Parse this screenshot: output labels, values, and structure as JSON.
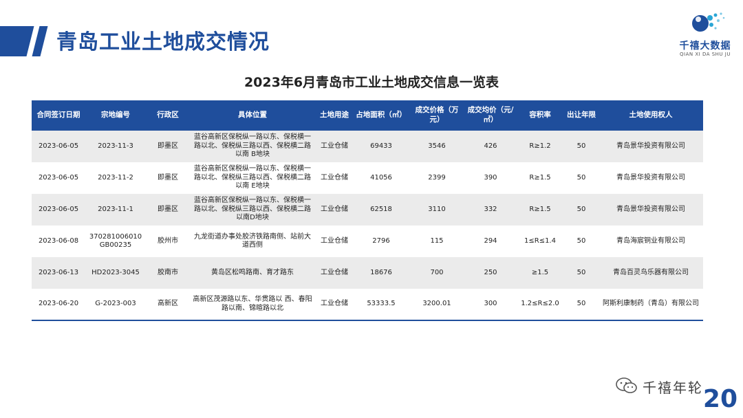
{
  "header": {
    "title": "青岛工业土地成交情况"
  },
  "logo": {
    "name": "千禧大数据",
    "pinyin": "QIAN XI DA SHU JU"
  },
  "table": {
    "title": "2023年6月青岛市工业土地成交信息一览表",
    "columns": [
      "合同签订日期",
      "宗地编号",
      "行政区",
      "具体位置",
      "土地用途",
      "占地面积（㎡）",
      "成交价格（万元）",
      "成交均价（元/㎡）",
      "容积率",
      "出让年限",
      "土地使用权人"
    ],
    "rows": [
      [
        "2023-06-05",
        "2023-11-3",
        "即墨区",
        "蓝谷高新区保税纵一路以东、保税横一路以北、保税纵三路以西、保税横二路以南 B地块",
        "工业仓储",
        "69433",
        "3546",
        "426",
        "R≥1.2",
        "50",
        "青岛景华投资有限公司"
      ],
      [
        "2023-06-05",
        "2023-11-2",
        "即墨区",
        "蓝谷高新区保税纵一路以东、保税横一路以北、保税纵三路以西、保税横二路以南 E地块",
        "工业仓储",
        "41056",
        "2399",
        "390",
        "R≥1.5",
        "50",
        "青岛景华投资有限公司"
      ],
      [
        "2023-06-05",
        "2023-11-1",
        "即墨区",
        "蓝谷高新区保税纵一路以东、保税横一路以北、保税纵三路以西、保税横二路以南D地块",
        "工业仓储",
        "62518",
        "3110",
        "332",
        "R≥1.5",
        "50",
        "青岛景华投资有限公司"
      ],
      [
        "2023-06-08",
        "370281006010GB00235",
        "胶州市",
        "九龙街道办事处胶济铁路南侧、站前大道西侧",
        "工业仓储",
        "2796",
        "115",
        "294",
        "1≤R≤1.4",
        "50",
        "青岛海宸铜业有限公司"
      ],
      [
        "2023-06-13",
        "HD2023-3045",
        "胶南市",
        "黄岛区松鸣路南、育才路东",
        "工业仓储",
        "18676",
        "700",
        "250",
        "≥1.5",
        "50",
        "青岛百灵鸟乐器有限公司"
      ],
      [
        "2023-06-20",
        "G-2023-003",
        "高新区",
        "高新区茂源路以东、华贯路以 西、春阳路以南、锦暄路以北",
        "工业仓储",
        "53333.5",
        "3200.01",
        "300",
        "1.2≤R≤2.0",
        "50",
        "阿斯利康制药（青岛）有限公司"
      ]
    ]
  },
  "watermark": {
    "text": "千禧年轮"
  },
  "page": {
    "number": "20"
  },
  "colors": {
    "accent": "#1f4e9c",
    "row_alt": "#ebebeb"
  }
}
